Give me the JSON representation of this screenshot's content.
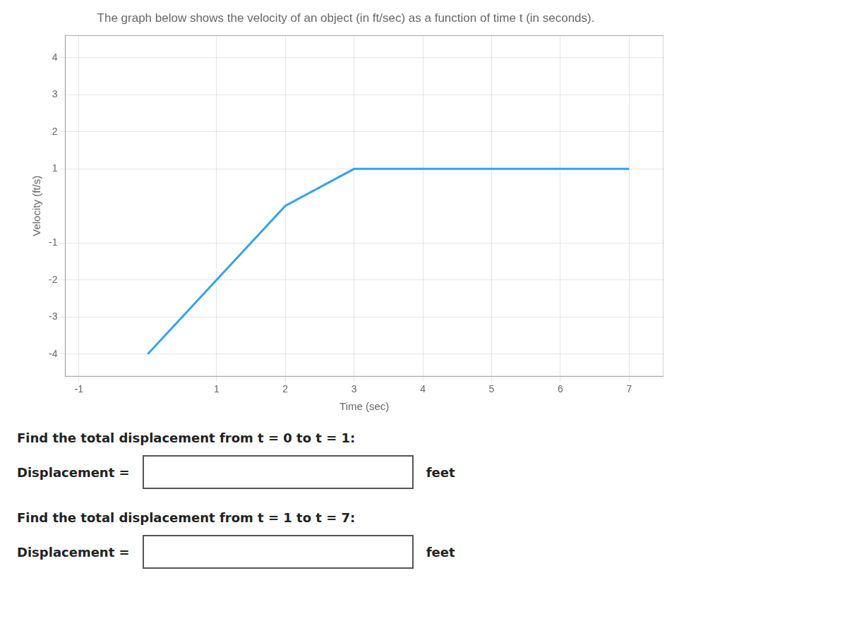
{
  "chart_data": {
    "type": "line",
    "title": "The graph below shows the velocity of an object (in ft/sec) as a function of time t (in seconds).",
    "x_label": "Time (sec)",
    "y_label": "Velocity (ft/s)",
    "x": [
      0,
      2.0,
      3.0,
      7.0
    ],
    "values": [
      -4,
      0.0,
      1.0,
      1.0
    ],
    "xlim": [
      -1.2,
      7.5
    ],
    "ylim": [
      -4.6,
      4.6
    ],
    "xticks": [
      -1,
      1,
      2,
      3,
      4,
      5,
      6,
      7
    ],
    "yticks": [
      -4,
      -3,
      -2,
      -1,
      1,
      2,
      3,
      4
    ],
    "grid": true,
    "annotations": [
      "Find the total displacement from t = 0 to t = 1:",
      "Displacement =",
      "feet",
      "Find the total displacement from t = 1 to t = 7:",
      "Displacement =",
      "feet"
    ]
  }
}
